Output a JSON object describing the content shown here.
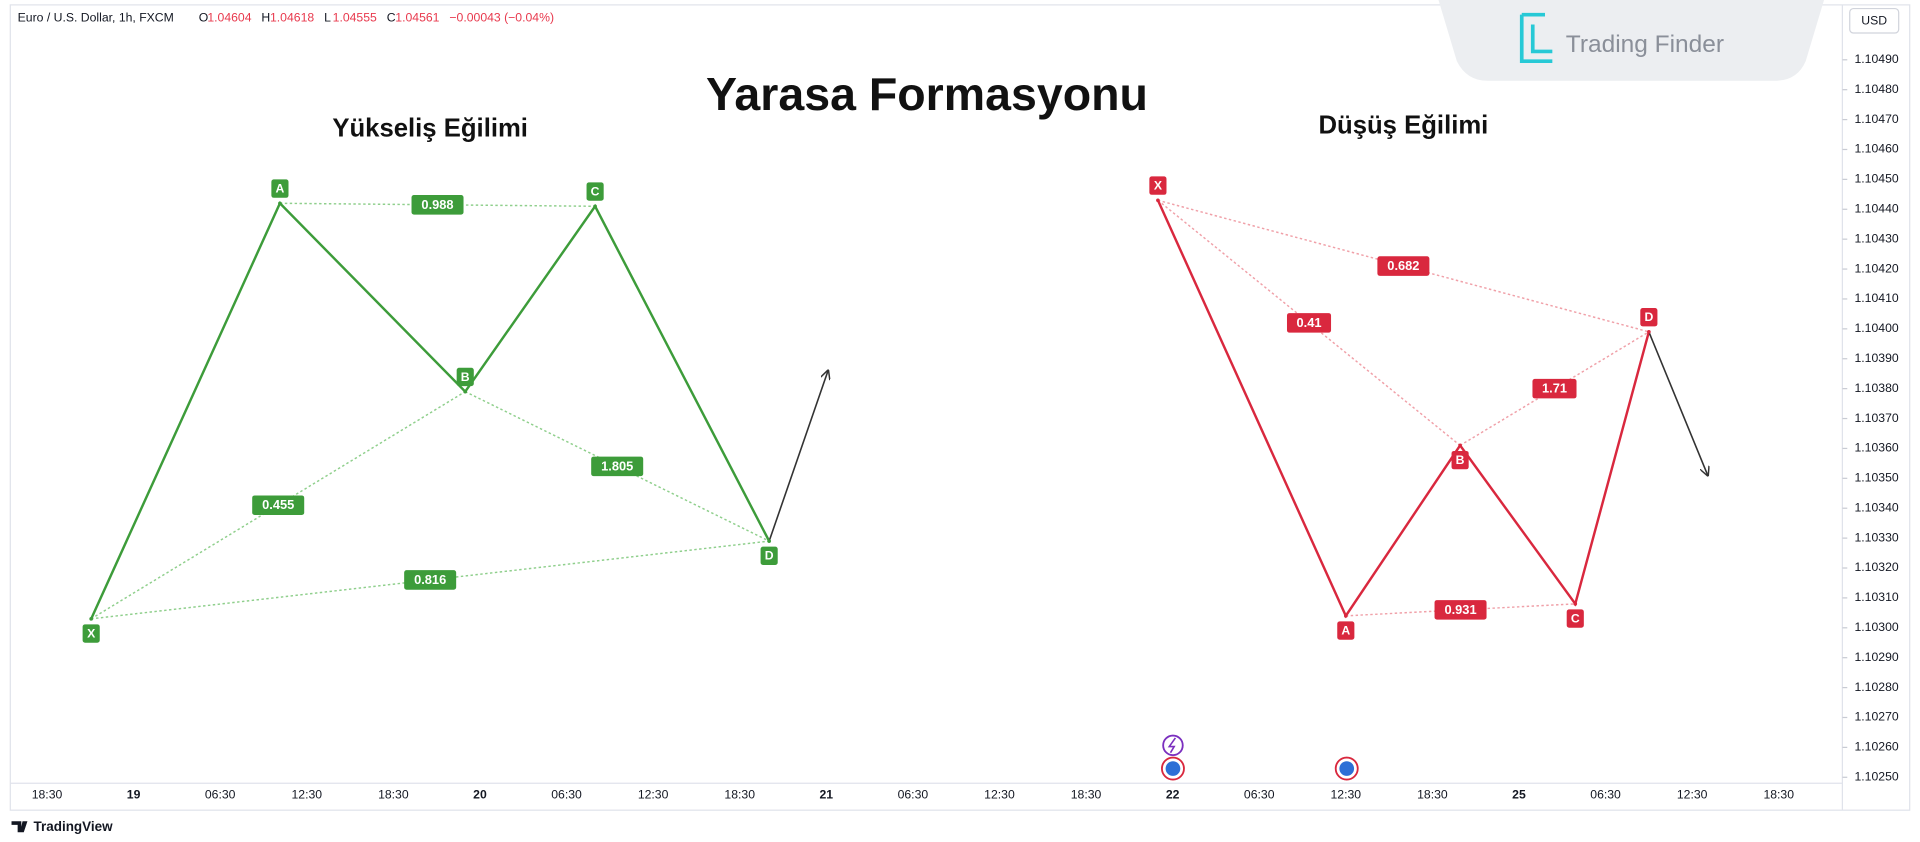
{
  "header": {
    "symbol": "Euro / U.S. Dollar, 1h, FXCM",
    "ohlc": [
      {
        "label": "O",
        "value": "1.04604"
      },
      {
        "label": "H",
        "value": "1.04618"
      },
      {
        "label": "L",
        "value": "1.04555"
      },
      {
        "label": "C",
        "value": "1.04561"
      }
    ],
    "change": "−0.00043 (−0.04%)"
  },
  "currency": "USD",
  "logo": "Trading Finder",
  "footer": "TradingView",
  "chart_data": {
    "type": "harmonic",
    "title": "Yarasa Formasyonu",
    "categories": [
      "18:30",
      "19",
      "06:30",
      "12:30",
      "18:30",
      "20",
      "06:30",
      "12:30",
      "18:30",
      "21",
      "06:30",
      "12:30",
      "18:30",
      "22",
      "06:30",
      "12:30",
      "18:30",
      "25",
      "06:30",
      "12:30",
      "18:30"
    ],
    "ylim": [
      1.10248,
      1.1051
    ],
    "yticks": [
      {
        "value": 1.1049,
        "label": "1.10490"
      },
      {
        "value": 1.1048,
        "label": "1.10480"
      },
      {
        "value": 1.1047,
        "label": "1.10470"
      },
      {
        "value": 1.1046,
        "label": "1.10460"
      },
      {
        "value": 1.1045,
        "label": "1.10450"
      },
      {
        "value": 1.1044,
        "label": "1.10440"
      },
      {
        "value": 1.1043,
        "label": "1.10430"
      },
      {
        "value": 1.1042,
        "label": "1.10420"
      },
      {
        "value": 1.1041,
        "label": "1.10410"
      },
      {
        "value": 1.104,
        "label": "1.10400"
      },
      {
        "value": 1.1039,
        "label": "1.10390"
      },
      {
        "value": 1.1038,
        "label": "1.10380"
      },
      {
        "value": 1.1037,
        "label": "1.10370"
      },
      {
        "value": 1.1036,
        "label": "1.10360"
      },
      {
        "value": 1.1035,
        "label": "1.10350"
      },
      {
        "value": 1.1034,
        "label": "1.10340"
      },
      {
        "value": 1.1033,
        "label": "1.10330"
      },
      {
        "value": 1.1032,
        "label": "1.10320"
      },
      {
        "value": 1.1031,
        "label": "1.10310"
      },
      {
        "value": 1.103,
        "label": "1.10300"
      },
      {
        "value": 1.1029,
        "label": "1.10290"
      },
      {
        "value": 1.1028,
        "label": "1.10280"
      },
      {
        "value": 1.1027,
        "label": "1.10270"
      },
      {
        "value": 1.1026,
        "label": "1.10260"
      },
      {
        "value": 1.1025,
        "label": "1.10250"
      }
    ],
    "patterns": [
      {
        "title": "Yükseliş Eğilimi",
        "color": "#3d9c3a",
        "ratio_color": "#8fcf8c",
        "points": [
          {
            "label": "X",
            "x": 0.51,
            "price": 1.10303
          },
          {
            "label": "A",
            "x": 2.69,
            "price": 1.10442
          },
          {
            "label": "B",
            "x": 4.83,
            "price": 1.10379
          },
          {
            "label": "C",
            "x": 6.33,
            "price": 1.10441
          },
          {
            "label": "D",
            "x": 8.34,
            "price": 1.10329
          }
        ],
        "arrow": {
          "x": 9.02,
          "price": 1.10386
        },
        "ratios": [
          {
            "label": "0.988",
            "from": "A",
            "to": "C"
          },
          {
            "label": "0.455",
            "from": "X",
            "to": "B"
          },
          {
            "label": "1.805",
            "from": "B",
            "to": "D"
          },
          {
            "label": "0.816",
            "from": "X",
            "to": "D"
          }
        ]
      },
      {
        "title": "Düşüş Eğilimi",
        "color": "#d9283e",
        "ratio_color": "#f0a0a8",
        "points": [
          {
            "label": "X",
            "x": 12.83,
            "price": 1.10443
          },
          {
            "label": "A",
            "x": 15.0,
            "price": 1.10304
          },
          {
            "label": "B",
            "x": 16.32,
            "price": 1.10361
          },
          {
            "label": "C",
            "x": 17.65,
            "price": 1.10308
          },
          {
            "label": "D",
            "x": 18.5,
            "price": 1.10399
          }
        ],
        "arrow": {
          "x": 19.18,
          "price": 1.10351
        },
        "ratios": [
          {
            "label": "0.682",
            "from": "X",
            "to": "D"
          },
          {
            "label": "0.41",
            "from": "X",
            "to": "B"
          },
          {
            "label": "1.71",
            "from": "B",
            "to": "D"
          },
          {
            "label": "0.931",
            "from": "A",
            "to": "C"
          }
        ]
      }
    ]
  }
}
